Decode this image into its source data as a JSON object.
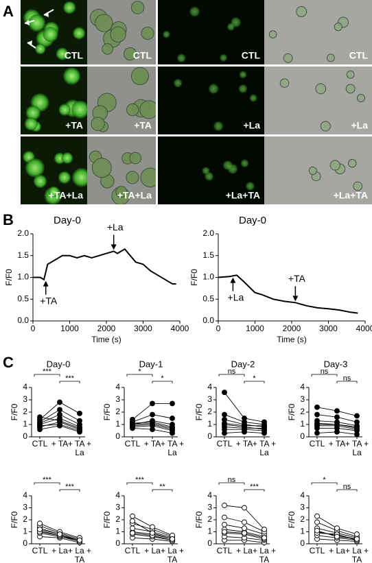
{
  "panel_labels": [
    "A",
    "B",
    "C"
  ],
  "images": [
    [
      "CTL",
      "CTL",
      "CTL",
      "CTL"
    ],
    [
      "+TA",
      "+TA",
      "+La",
      "+La"
    ],
    [
      "+TA+La",
      "+TA+La",
      "+La+TA",
      "+La+TA"
    ]
  ],
  "chart_data": [
    {
      "type": "line",
      "title": "Day-0",
      "xlabel": "Time (s)",
      "ylabel": "F/F0",
      "x": [
        0,
        200,
        300,
        400,
        600,
        800,
        1000,
        1200,
        1400,
        1600,
        1800,
        2000,
        2200,
        2300,
        2500,
        2600,
        2800,
        3000,
        3200,
        3400,
        3600,
        3800,
        3900
      ],
      "values": [
        1.0,
        1.0,
        0.95,
        1.3,
        1.4,
        1.5,
        1.5,
        1.45,
        1.5,
        1.45,
        1.5,
        1.55,
        1.6,
        1.55,
        1.65,
        1.55,
        1.35,
        1.3,
        1.15,
        1.05,
        0.95,
        0.85,
        0.85
      ],
      "color": "#000000",
      "xlim": [
        0,
        4000
      ],
      "xticks": [
        0,
        1000,
        2000,
        3000,
        4000
      ],
      "ylim": [
        0,
        2
      ],
      "yticks": [
        {
          "value": 0,
          "label": "0.0"
        },
        0.5,
        {
          "value": 1,
          "label": "1.0"
        },
        1.5,
        {
          "value": 2,
          "label": "2.0"
        }
      ],
      "annotations": [
        {
          "text": "+TA",
          "x": 350,
          "y": 0.95,
          "side": "below"
        },
        {
          "text": "+La",
          "x": 2200,
          "y": 1.6,
          "side": "above"
        }
      ]
    },
    {
      "type": "line",
      "title": "Day-0",
      "xlabel": "Time (s)",
      "ylabel": "F/F0",
      "x": [
        0,
        300,
        500,
        700,
        1000,
        1200,
        1500,
        1800,
        2100,
        2400,
        2700,
        3000,
        3300,
        3600,
        3800
      ],
      "values": [
        1.0,
        1.02,
        1.05,
        0.9,
        0.65,
        0.6,
        0.5,
        0.45,
        0.42,
        0.35,
        0.3,
        0.28,
        0.25,
        0.2,
        0.18
      ],
      "color": "#000000",
      "xlim": [
        0,
        4000
      ],
      "xticks": [
        0,
        1000,
        2000,
        3000,
        4000
      ],
      "ylim": [
        0,
        2
      ],
      "yticks": [
        {
          "value": 0,
          "label": "0.0"
        },
        0.5,
        {
          "value": 1,
          "label": "1.0"
        },
        1.5,
        {
          "value": 2,
          "label": "2.0"
        }
      ],
      "annotations": [
        {
          "text": "+La",
          "x": 400,
          "y": 1.03,
          "side": "below"
        },
        {
          "text": "+TA",
          "x": 2100,
          "y": 0.42,
          "side": "above"
        }
      ]
    },
    {
      "type": "paired",
      "title": "Day-0",
      "ylabel": "F/F0",
      "categories": [
        "CTL",
        "+ TA",
        "+ TA + La"
      ],
      "marker": "filled",
      "ylim": [
        0,
        4
      ],
      "yticks": [
        0,
        1,
        2,
        3,
        4
      ],
      "significance": [
        "***",
        "***"
      ],
      "subjects": [
        [
          0.6,
          0.9,
          0.4
        ],
        [
          0.8,
          1.2,
          0.6
        ],
        [
          1.0,
          1.5,
          0.8
        ],
        [
          1.1,
          1.8,
          1.0
        ],
        [
          1.2,
          2.2,
          1.3
        ],
        [
          1.4,
          2.8,
          1.9
        ],
        [
          1.6,
          1.3,
          0.7
        ],
        [
          0.9,
          1.0,
          0.5
        ]
      ]
    },
    {
      "type": "paired",
      "title": "Day-1",
      "ylabel": "F/F0",
      "categories": [
        "CTL",
        "+ TA",
        "+ TA + La"
      ],
      "marker": "filled",
      "ylim": [
        0,
        4
      ],
      "yticks": [
        0,
        1,
        2,
        3,
        4
      ],
      "significance": [
        "*",
        "*"
      ],
      "subjects": [
        [
          0.7,
          0.6,
          0.3
        ],
        [
          0.9,
          1.0,
          0.6
        ],
        [
          1.0,
          1.3,
          1.0
        ],
        [
          1.2,
          1.8,
          1.5
        ],
        [
          1.4,
          2.7,
          2.7
        ],
        [
          1.1,
          1.2,
          0.8
        ],
        [
          0.8,
          0.9,
          0.5
        ],
        [
          1.0,
          1.1,
          0.7
        ]
      ]
    },
    {
      "type": "paired",
      "title": "Day-2",
      "ylabel": "F/F0",
      "categories": [
        "CTL",
        "+ TA",
        "+ TA + La"
      ],
      "marker": "filled",
      "ylim": [
        0,
        4
      ],
      "yticks": [
        0,
        1,
        2,
        3,
        4
      ],
      "significance": [
        "ns",
        "*"
      ],
      "subjects": [
        [
          0.3,
          0.4,
          0.3
        ],
        [
          0.6,
          0.6,
          0.5
        ],
        [
          1.0,
          0.8,
          0.6
        ],
        [
          1.4,
          1.0,
          0.8
        ],
        [
          1.8,
          1.2,
          1.0
        ],
        [
          3.6,
          1.5,
          1.2
        ],
        [
          0.8,
          0.7,
          0.7
        ],
        [
          1.1,
          0.9,
          0.9
        ]
      ]
    },
    {
      "type": "paired",
      "title": "Day-3",
      "ylabel": "F/F0",
      "categories": [
        "CTL",
        "+ TA",
        "+ TA + La"
      ],
      "marker": "filled",
      "ylim": [
        0,
        4
      ],
      "yticks": [
        0,
        1,
        2,
        3,
        4
      ],
      "significance": [
        "ns",
        "ns"
      ],
      "subjects": [
        [
          0.3,
          0.4,
          0.2
        ],
        [
          0.7,
          0.7,
          0.5
        ],
        [
          1.0,
          1.0,
          0.7
        ],
        [
          1.3,
          1.2,
          0.9
        ],
        [
          1.8,
          1.6,
          1.2
        ],
        [
          2.4,
          2.1,
          1.7
        ],
        [
          0.9,
          0.9,
          0.6
        ],
        [
          1.1,
          1.0,
          0.8
        ]
      ]
    },
    {
      "type": "paired",
      "title": "",
      "ylabel": "F/F0",
      "categories": [
        "CTL",
        "+ La",
        "+ La + TA"
      ],
      "marker": "open",
      "ylim": [
        0,
        4
      ],
      "yticks": [
        0,
        1,
        2,
        3,
        4
      ],
      "significance": [
        "***",
        "***"
      ],
      "subjects": [
        [
          0.6,
          0.5,
          0.1
        ],
        [
          0.9,
          0.6,
          0.2
        ],
        [
          1.1,
          0.7,
          0.3
        ],
        [
          1.3,
          0.8,
          0.3
        ],
        [
          1.5,
          0.9,
          0.4
        ],
        [
          1.7,
          1.0,
          0.5
        ],
        [
          1.0,
          0.7,
          0.2
        ],
        [
          1.2,
          0.8,
          0.3
        ]
      ]
    },
    {
      "type": "paired",
      "title": "",
      "ylabel": "F/F0",
      "categories": [
        "CTL",
        "+ La",
        "+ La + TA"
      ],
      "marker": "open",
      "ylim": [
        0,
        4
      ],
      "yticks": [
        0,
        1,
        2,
        3,
        4
      ],
      "significance": [
        "***",
        "**"
      ],
      "subjects": [
        [
          0.5,
          0.4,
          0.2
        ],
        [
          0.8,
          0.6,
          0.3
        ],
        [
          1.0,
          0.8,
          0.4
        ],
        [
          1.3,
          1.0,
          0.5
        ],
        [
          1.7,
          1.2,
          0.6
        ],
        [
          2.3,
          1.4,
          0.7
        ],
        [
          0.9,
          0.7,
          0.3
        ],
        [
          1.9,
          0.9,
          0.4
        ]
      ]
    },
    {
      "type": "paired",
      "title": "",
      "ylabel": "F/F0",
      "categories": [
        "CTL",
        "+ La",
        "+ La + TA"
      ],
      "marker": "open",
      "ylim": [
        0,
        4
      ],
      "yticks": [
        0,
        1,
        2,
        3,
        4
      ],
      "significance": [
        "ns",
        "***"
      ],
      "subjects": [
        [
          0.3,
          0.3,
          0.1
        ],
        [
          0.6,
          0.5,
          0.3
        ],
        [
          0.9,
          0.8,
          0.4
        ],
        [
          1.2,
          1.0,
          0.6
        ],
        [
          1.6,
          1.3,
          0.8
        ],
        [
          2.2,
          1.8,
          1.0
        ],
        [
          3.2,
          3.0,
          1.2
        ],
        [
          1.0,
          0.9,
          0.5
        ]
      ]
    },
    {
      "type": "paired",
      "title": "",
      "ylabel": "F/F0",
      "categories": [
        "CTL",
        "+ La",
        "+ La + TA"
      ],
      "marker": "open",
      "ylim": [
        0,
        4
      ],
      "yticks": [
        0,
        1,
        2,
        3,
        4
      ],
      "significance": [
        "*",
        "ns"
      ],
      "subjects": [
        [
          0.4,
          0.3,
          0.2
        ],
        [
          0.7,
          0.5,
          0.3
        ],
        [
          1.0,
          0.7,
          0.4
        ],
        [
          1.3,
          0.9,
          0.5
        ],
        [
          1.8,
          1.1,
          0.6
        ],
        [
          2.3,
          1.3,
          0.8
        ],
        [
          0.9,
          0.8,
          0.3
        ],
        [
          1.1,
          0.6,
          0.4
        ]
      ]
    }
  ]
}
